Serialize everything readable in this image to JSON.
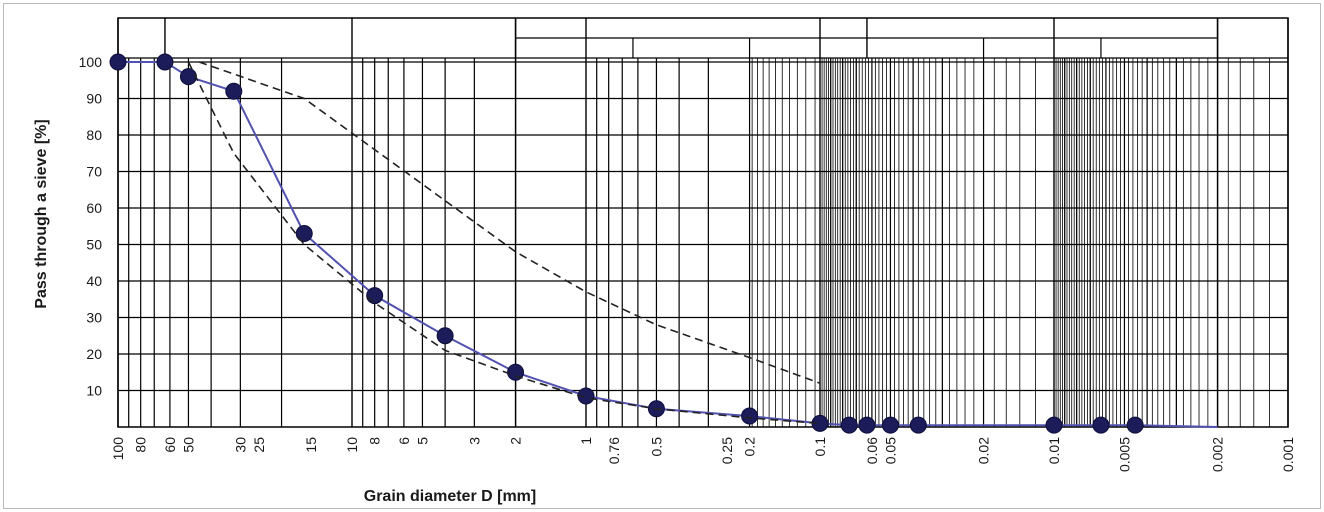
{
  "chart_data": {
    "type": "line",
    "xlabel": "Grain diameter D [mm]",
    "ylabel": "Pass through a sieve [%]",
    "x_scale": "log",
    "x_direction": "decreasing",
    "xlim": [
      100,
      0.001
    ],
    "ylim": [
      0,
      100
    ],
    "x_tick_labels": [
      "100",
      "80",
      "60",
      "50",
      "30",
      "25",
      "15",
      "10",
      "8",
      "6",
      "5",
      "3",
      "2",
      "1",
      "0.76",
      "0.5",
      "0.25",
      "0.2",
      "0.1",
      "0.06",
      "0.05",
      "0.02",
      "0.01",
      "0.005",
      "0.002",
      "0.001"
    ],
    "y_tick_labels": [
      "100",
      "90",
      "80",
      "70",
      "60",
      "50",
      "40",
      "30",
      "20",
      "10"
    ],
    "grid": true,
    "colors": {
      "series": "#5252b0",
      "marker": "#1c1c5a",
      "envelope": "#222222",
      "grid": "#000000"
    },
    "series": [
      {
        "style": "solid-with-markers",
        "points": [
          {
            "x": 100,
            "y": 100
          },
          {
            "x": 63,
            "y": 100
          },
          {
            "x": 50,
            "y": 96
          },
          {
            "x": 32,
            "y": 92
          },
          {
            "x": 16,
            "y": 53
          },
          {
            "x": 8,
            "y": 36
          },
          {
            "x": 4,
            "y": 25
          },
          {
            "x": 2,
            "y": 15
          },
          {
            "x": 1,
            "y": 8.5
          },
          {
            "x": 0.5,
            "y": 5
          },
          {
            "x": 0.2,
            "y": 3
          },
          {
            "x": 0.1,
            "y": 1
          },
          {
            "x": 0.075,
            "y": 0.5
          },
          {
            "x": 0.063,
            "y": 0.5
          },
          {
            "x": 0.05,
            "y": 0.5
          },
          {
            "x": 0.038,
            "y": 0.5
          },
          {
            "x": 0.01,
            "y": 0.5
          },
          {
            "x": 0.0063,
            "y": 0.5
          },
          {
            "x": 0.0045,
            "y": 0.5
          },
          {
            "x": 0.002,
            "y": 0
          }
        ]
      },
      {
        "style": "dashed",
        "points": [
          {
            "x": 45,
            "y": 100
          },
          {
            "x": 16,
            "y": 90
          },
          {
            "x": 4,
            "y": 62
          },
          {
            "x": 2,
            "y": 48
          },
          {
            "x": 1,
            "y": 37
          },
          {
            "x": 0.5,
            "y": 28
          },
          {
            "x": 0.2,
            "y": 19
          },
          {
            "x": 0.1,
            "y": 12
          }
        ]
      },
      {
        "style": "dashed",
        "points": [
          {
            "x": 50,
            "y": 100
          },
          {
            "x": 32,
            "y": 75
          },
          {
            "x": 16,
            "y": 50
          },
          {
            "x": 8,
            "y": 34
          },
          {
            "x": 4,
            "y": 21
          },
          {
            "x": 2,
            "y": 14
          },
          {
            "x": 1,
            "y": 8
          },
          {
            "x": 0.5,
            "y": 5
          },
          {
            "x": 0.2,
            "y": 2.5
          },
          {
            "x": 0.1,
            "y": 1
          }
        ]
      }
    ]
  }
}
